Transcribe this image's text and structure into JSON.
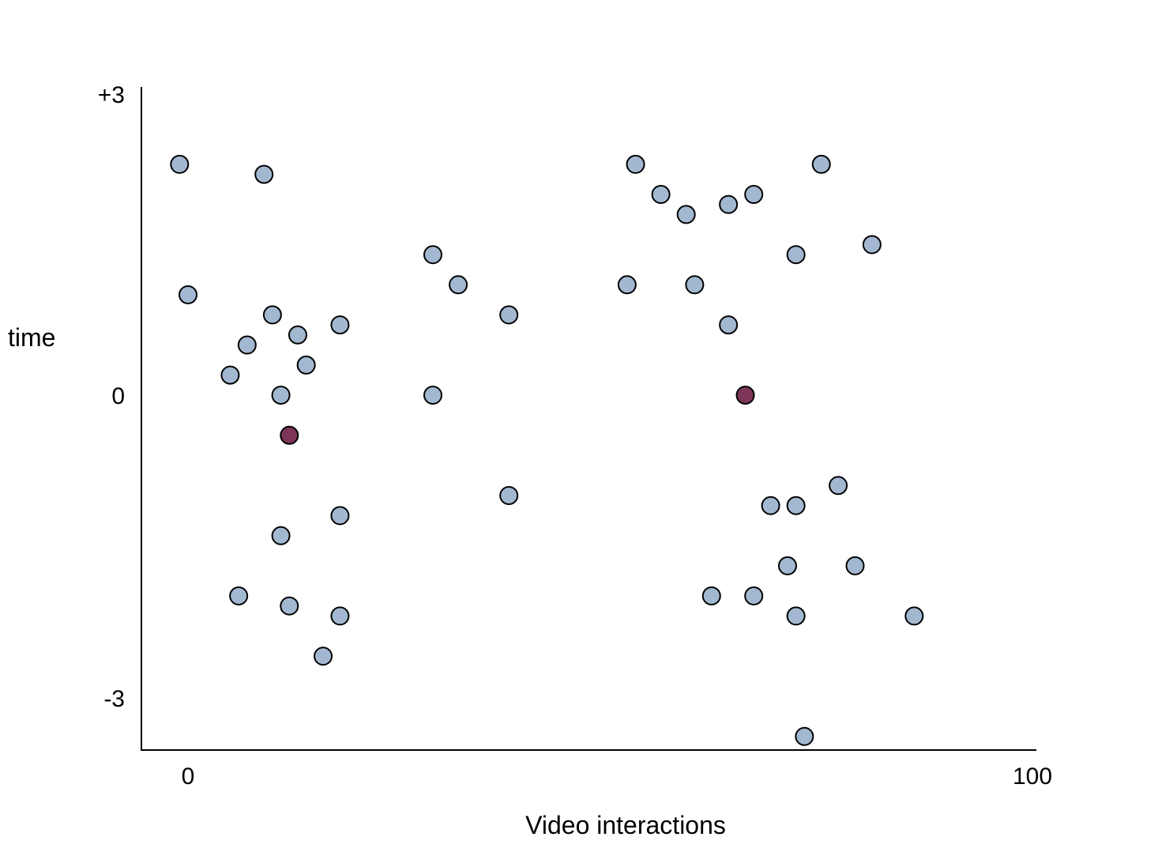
{
  "chart_data": {
    "type": "scatter",
    "xlabel": "Video interactions",
    "ylabel": "time",
    "xlim": [
      0,
      100
    ],
    "ylim": [
      -3,
      3
    ],
    "xticks": [
      {
        "value": 0,
        "label": "0"
      },
      {
        "value": 100,
        "label": "100"
      }
    ],
    "yticks": [
      {
        "value": 3,
        "label": "+3"
      },
      {
        "value": 0,
        "label": "0"
      },
      {
        "value": -3,
        "label": "-3"
      }
    ],
    "grid": false,
    "legend": "none",
    "series": [
      {
        "color": "#a2b8d0",
        "points": [
          {
            "x": -1,
            "y": 2.3
          },
          {
            "x": 9,
            "y": 2.2
          },
          {
            "x": 0,
            "y": 1.0
          },
          {
            "x": 10,
            "y": 0.8
          },
          {
            "x": 18,
            "y": 0.7
          },
          {
            "x": 13,
            "y": 0.6
          },
          {
            "x": 7,
            "y": 0.5
          },
          {
            "x": 14,
            "y": 0.3
          },
          {
            "x": 5,
            "y": 0.2
          },
          {
            "x": 11,
            "y": 0.0
          },
          {
            "x": 29,
            "y": 1.4
          },
          {
            "x": 32,
            "y": 1.1
          },
          {
            "x": 38,
            "y": 0.8
          },
          {
            "x": 29,
            "y": 0.0
          },
          {
            "x": 38,
            "y": -1.0
          },
          {
            "x": 18,
            "y": -1.2
          },
          {
            "x": 11,
            "y": -1.4
          },
          {
            "x": 6,
            "y": -2.0
          },
          {
            "x": 12,
            "y": -2.1
          },
          {
            "x": 18,
            "y": -2.2
          },
          {
            "x": 16,
            "y": -2.6
          },
          {
            "x": 53,
            "y": 2.3
          },
          {
            "x": 56,
            "y": 2.0
          },
          {
            "x": 59,
            "y": 1.8
          },
          {
            "x": 64,
            "y": 1.9
          },
          {
            "x": 67,
            "y": 2.0
          },
          {
            "x": 75,
            "y": 2.3
          },
          {
            "x": 72,
            "y": 1.4
          },
          {
            "x": 81,
            "y": 1.5
          },
          {
            "x": 52,
            "y": 1.1
          },
          {
            "x": 60,
            "y": 1.1
          },
          {
            "x": 64,
            "y": 0.7
          },
          {
            "x": 77,
            "y": -0.9
          },
          {
            "x": 69,
            "y": -1.1
          },
          {
            "x": 72,
            "y": -1.1
          },
          {
            "x": 71,
            "y": -1.7
          },
          {
            "x": 79,
            "y": -1.7
          },
          {
            "x": 62,
            "y": -2.0
          },
          {
            "x": 67,
            "y": -2.0
          },
          {
            "x": 72,
            "y": -2.2
          },
          {
            "x": 86,
            "y": -2.2
          },
          {
            "x": 73,
            "y": -3.4
          }
        ]
      },
      {
        "color": "#7d3558",
        "points": [
          {
            "x": 12,
            "y": -0.4
          },
          {
            "x": 66,
            "y": 0.0
          }
        ]
      }
    ]
  }
}
